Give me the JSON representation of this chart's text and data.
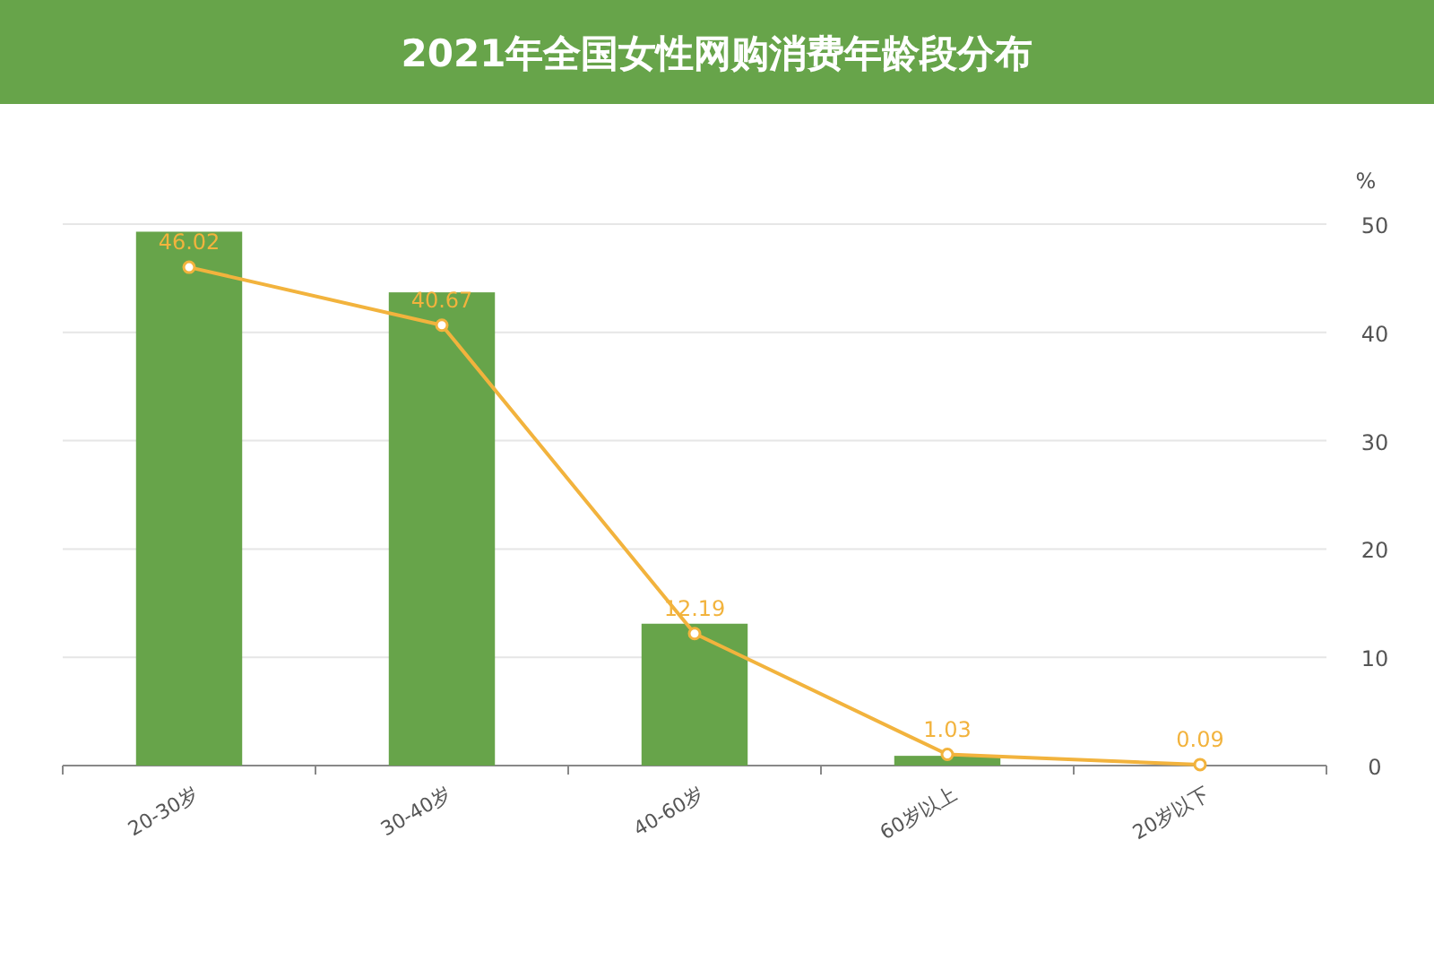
{
  "chart_data": {
    "type": "bar",
    "title": "2021年全国女性网购消费年龄段分布",
    "ylabel": "%",
    "categories": [
      "20-30岁",
      "30-40岁",
      "40-60岁",
      "60岁以上",
      "20岁以下"
    ],
    "series": [
      {
        "color": "#67a44a",
        "values": [
          49.3,
          43.7,
          13.1,
          0.9,
          null
        ]
      },
      {
        "type": "line",
        "color": "#f2b33d",
        "values": [
          46.02,
          40.67,
          12.19,
          1.03,
          0.09
        ],
        "value_labels": [
          "46.02",
          "40.67",
          "12.19",
          "1.03",
          "0.09"
        ],
        "marker": "circle"
      }
    ],
    "ylim": [
      0,
      50
    ],
    "yticks": [
      0,
      10,
      20,
      30,
      40,
      50
    ],
    "grid": "y"
  }
}
